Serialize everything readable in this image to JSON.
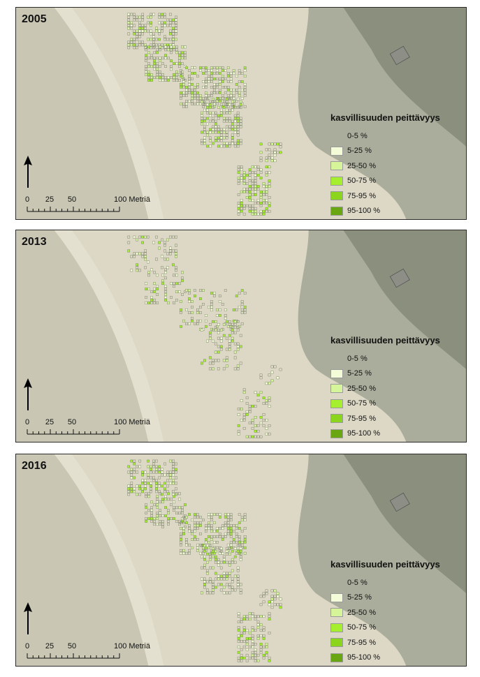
{
  "panels": [
    {
      "year": "2005",
      "density": 1.0
    },
    {
      "year": "2013",
      "density": 0.45
    },
    {
      "year": "2016",
      "density": 0.8
    }
  ],
  "legend": {
    "title": "kasvillisuuden peittävyys",
    "classes": [
      {
        "label": "0-5 %",
        "color": ""
      },
      {
        "label": "5-25 %",
        "color": "#f4fbd8"
      },
      {
        "label": "25-50 %",
        "color": "#d6f59a"
      },
      {
        "label": "50-75 %",
        "color": "#a6ef2e"
      },
      {
        "label": "75-95 %",
        "color": "#8bd61c"
      },
      {
        "label": "95-100 %",
        "color": "#6aa512"
      }
    ]
  },
  "scalebar": {
    "ticks": [
      "0",
      "25",
      "50",
      "100 Metriä"
    ]
  },
  "colors": {
    "sea": "#c9c7b4",
    "beach": "#ddd8c6",
    "dunes": "#d9d4c3",
    "forest": "#7f8a78",
    "grid_outline": "#5c6a4a"
  },
  "north_arrow_icon": "north-arrow-icon"
}
